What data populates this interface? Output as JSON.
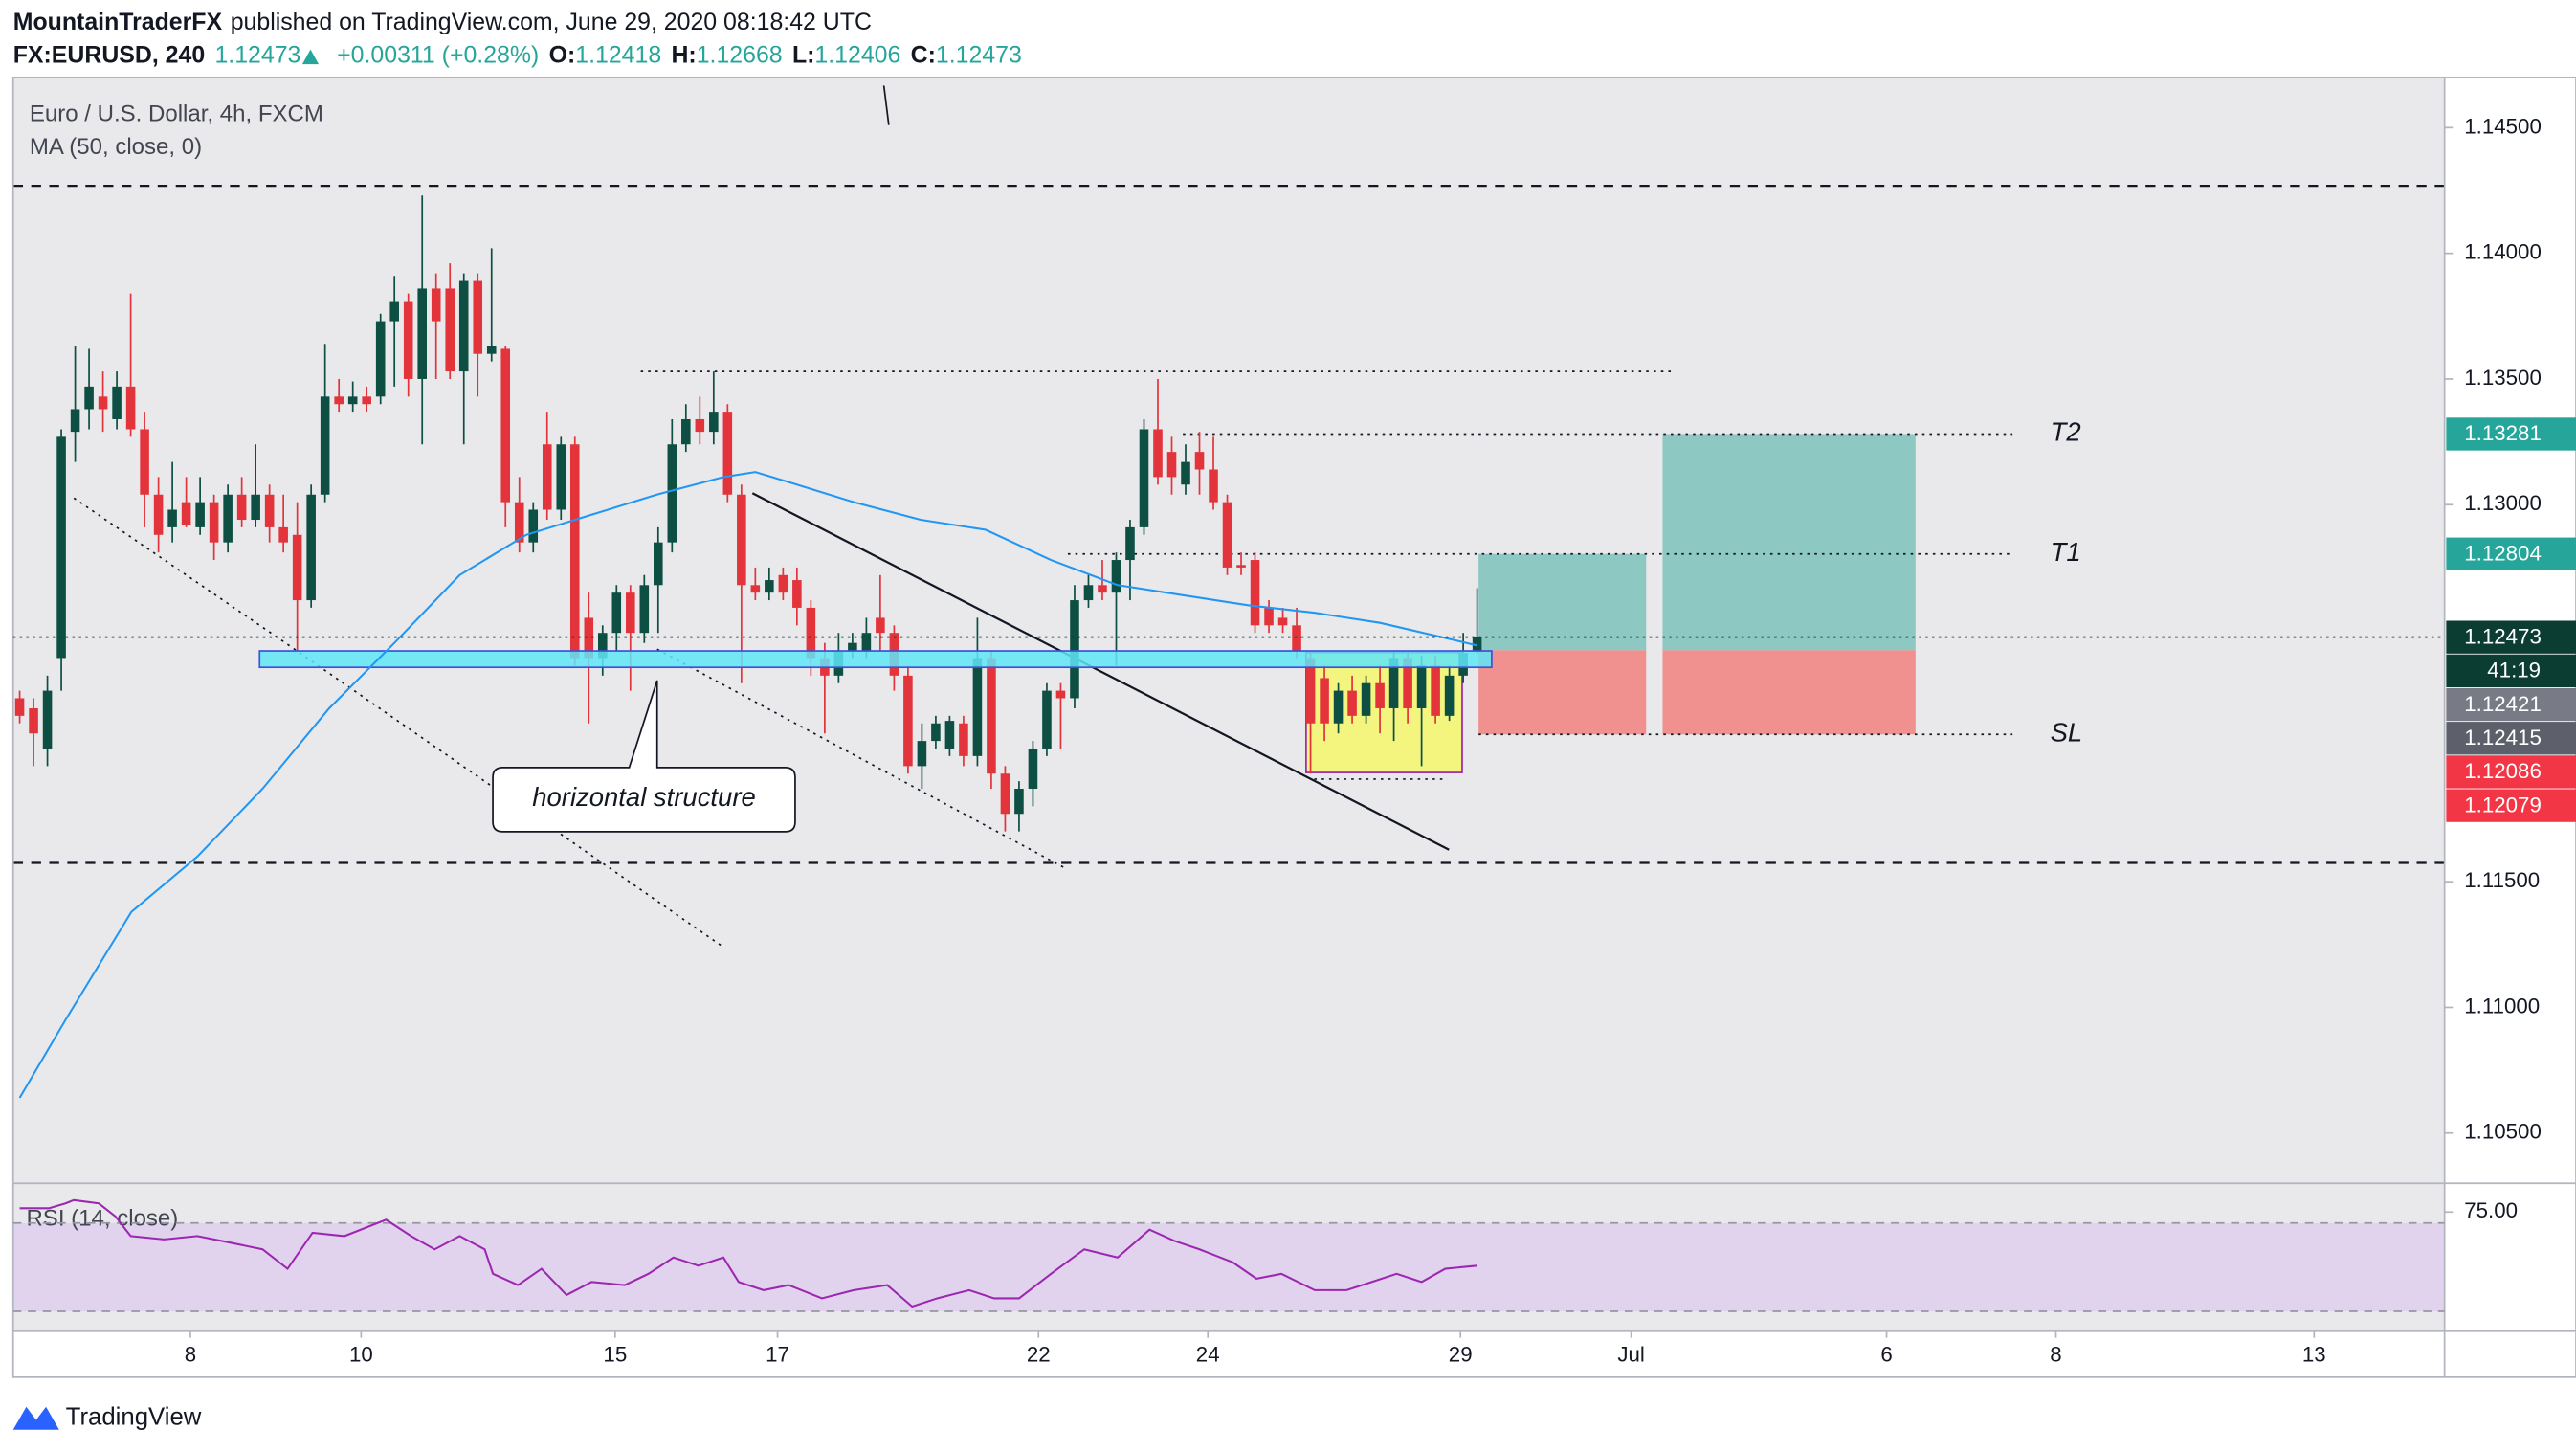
{
  "header": {
    "author": "MountainTraderFX",
    "published": "published on TradingView.com, June 29, 2020 08:18:42 UTC",
    "symbol": "FX:EURUSD, 240",
    "change": "+0.00311 (+0.28%)",
    "ohlc_labels": [
      "O:",
      "H:",
      "L:",
      "C:"
    ]
  },
  "chart_data": {
    "type": "candlestick",
    "title": "Euro / U.S. Dollar, 4h, FXCM",
    "up_color": "#0e4f43",
    "down_color": "#e3343c",
    "open": [
      1.1223,
      1.1219,
      1.1203,
      1.1239,
      1.1329,
      1.1338,
      1.1343,
      1.1334,
      1.1347,
      1.133,
      1.1304,
      1.1291,
      1.1301,
      1.1291,
      1.1301,
      1.1285,
      1.1304,
      1.1294,
      1.1304,
      1.1291,
      1.1288,
      1.1262,
      1.1304,
      1.1343,
      1.134,
      1.1343,
      1.1343,
      1.1373,
      1.1381,
      1.135,
      1.1386,
      1.1386,
      1.1353,
      1.1389,
      1.136,
      1.1362,
      1.1301,
      1.1285,
      1.1324,
      1.1298,
      1.1324,
      1.1255,
      1.1239,
      1.1249,
      1.1265,
      1.1249,
      1.1268,
      1.1285,
      1.1324,
      1.1334,
      1.1329,
      1.1337,
      1.1304,
      1.1268,
      1.1265,
      1.1272,
      1.127,
      1.1259,
      1.1239,
      1.1232,
      1.1242,
      1.1242,
      1.1255,
      1.1249,
      1.1232,
      1.1196,
      1.1206,
      1.1203,
      1.1213,
      1.12,
      1.1239,
      1.1193,
      1.1177,
      1.1187,
      1.1203,
      1.1226,
      1.1223,
      1.1262,
      1.1268,
      1.1265,
      1.1278,
      1.1291,
      1.133,
      1.1321,
      1.1308,
      1.1321,
      1.1314,
      1.1301,
      1.1276,
      1.1278,
      1.1259,
      1.1255,
      1.1252,
      1.1239,
      1.1231,
      1.1213,
      1.1226,
      1.1216,
      1.1229,
      1.1219,
      1.1239,
      1.1219,
      1.1236,
      1.1216,
      1.1232,
      1.12418
    ],
    "high": [
      1.1226,
      1.1223,
      1.1232,
      1.133,
      1.1363,
      1.1362,
      1.1353,
      1.1353,
      1.1384,
      1.1337,
      1.1311,
      1.1317,
      1.1311,
      1.1311,
      1.1304,
      1.1308,
      1.1311,
      1.1324,
      1.1308,
      1.1304,
      1.1301,
      1.1308,
      1.1364,
      1.135,
      1.1349,
      1.1347,
      1.1376,
      1.1391,
      1.1384,
      1.1423,
      1.1392,
      1.1396,
      1.1392,
      1.1392,
      1.1402,
      1.1363,
      1.1311,
      1.1301,
      1.1337,
      1.1327,
      1.1327,
      1.1265,
      1.1252,
      1.1268,
      1.1268,
      1.1272,
      1.1291,
      1.1334,
      1.134,
      1.1343,
      1.1353,
      1.134,
      1.1308,
      1.1275,
      1.1275,
      1.1275,
      1.1275,
      1.1262,
      1.1245,
      1.1249,
      1.1249,
      1.1255,
      1.1272,
      1.1252,
      1.1236,
      1.1213,
      1.1216,
      1.1216,
      1.1216,
      1.1255,
      1.1242,
      1.1196,
      1.119,
      1.1206,
      1.1229,
      1.1229,
      1.1268,
      1.1272,
      1.1278,
      1.1281,
      1.1294,
      1.1334,
      1.135,
      1.1327,
      1.1324,
      1.1329,
      1.1327,
      1.1304,
      1.1281,
      1.1281,
      1.1262,
      1.1259,
      1.1259,
      1.1242,
      1.1236,
      1.1229,
      1.1232,
      1.1232,
      1.1236,
      1.1242,
      1.1242,
      1.124,
      1.124,
      1.1236,
      1.1249,
      1.12668
    ],
    "low": [
      1.1213,
      1.1196,
      1.1196,
      1.1226,
      1.1317,
      1.133,
      1.1329,
      1.133,
      1.1327,
      1.1291,
      1.1281,
      1.1285,
      1.1291,
      1.1288,
      1.1278,
      1.1281,
      1.1291,
      1.1291,
      1.1285,
      1.1281,
      1.1242,
      1.1259,
      1.1301,
      1.1337,
      1.1337,
      1.1337,
      1.134,
      1.1347,
      1.1343,
      1.1324,
      1.135,
      1.135,
      1.1324,
      1.1343,
      1.1357,
      1.1291,
      1.1281,
      1.1281,
      1.1294,
      1.1294,
      1.1236,
      1.1213,
      1.1232,
      1.1242,
      1.1226,
      1.1245,
      1.1249,
      1.1281,
      1.1321,
      1.1324,
      1.1324,
      1.1301,
      1.1229,
      1.1262,
      1.1262,
      1.1262,
      1.1252,
      1.1232,
      1.1209,
      1.1229,
      1.1239,
      1.1239,
      1.1242,
      1.1226,
      1.1193,
      1.1187,
      1.1203,
      1.12,
      1.1196,
      1.1196,
      1.1187,
      1.117,
      1.117,
      1.118,
      1.12,
      1.1203,
      1.1219,
      1.1259,
      1.1262,
      1.1236,
      1.1262,
      1.1288,
      1.1308,
      1.1304,
      1.1304,
      1.1304,
      1.1298,
      1.1272,
      1.1272,
      1.1249,
      1.1249,
      1.1249,
      1.1239,
      1.1193,
      1.1206,
      1.1209,
      1.1213,
      1.1213,
      1.1209,
      1.1206,
      1.1213,
      1.1196,
      1.1213,
      1.1214,
      1.1229,
      1.12406
    ],
    "close": [
      1.1216,
      1.1209,
      1.1226,
      1.1327,
      1.1338,
      1.1347,
      1.1338,
      1.1347,
      1.133,
      1.1304,
      1.1288,
      1.1298,
      1.1292,
      1.1301,
      1.1285,
      1.1304,
      1.1294,
      1.1304,
      1.1291,
      1.1285,
      1.1262,
      1.1304,
      1.1343,
      1.134,
      1.1343,
      1.134,
      1.1373,
      1.1381,
      1.135,
      1.1386,
      1.1373,
      1.1353,
      1.1389,
      1.136,
      1.1363,
      1.1301,
      1.1285,
      1.1298,
      1.1298,
      1.1324,
      1.1239,
      1.1239,
      1.1249,
      1.1265,
      1.1249,
      1.1268,
      1.1285,
      1.1324,
      1.1334,
      1.1329,
      1.1337,
      1.1304,
      1.1268,
      1.1265,
      1.127,
      1.1265,
      1.1259,
      1.1239,
      1.1232,
      1.1242,
      1.1245,
      1.1249,
      1.1249,
      1.1232,
      1.1196,
      1.1206,
      1.1213,
      1.1214,
      1.12,
      1.1239,
      1.1193,
      1.1177,
      1.1187,
      1.1203,
      1.1226,
      1.1223,
      1.1262,
      1.1268,
      1.1265,
      1.1278,
      1.1291,
      1.133,
      1.1311,
      1.1311,
      1.1317,
      1.1314,
      1.1301,
      1.1275,
      1.1275,
      1.1252,
      1.1252,
      1.1252,
      1.1242,
      1.1213,
      1.1213,
      1.1226,
      1.1216,
      1.1229,
      1.1219,
      1.1239,
      1.1219,
      1.1236,
      1.1216,
      1.1232,
      1.1241,
      1.12473
    ],
    "ma": {
      "name": "MA (50, close, 0)",
      "color": "#2196f3",
      "x": [
        0,
        3.3,
        8.05,
        12.8,
        17.5,
        22.3,
        27.0,
        31.7,
        36.5,
        41.2,
        45.9,
        50.7,
        53.0,
        55.4,
        60.1,
        64.9,
        69.6,
        74.3,
        79.1,
        83.8,
        88.5,
        93.3,
        98.0,
        102.7,
        105
      ],
      "values": [
        1.1064,
        1.1095,
        1.1138,
        1.116,
        1.1187,
        1.1219,
        1.1245,
        1.1272,
        1.1288,
        1.1296,
        1.1304,
        1.1311,
        1.1313,
        1.1309,
        1.1301,
        1.1294,
        1.129,
        1.1278,
        1.1268,
        1.1264,
        1.126,
        1.1257,
        1.1253,
        1.1247,
        1.1244
      ]
    },
    "xlim": [
      -0.47,
      174.7
    ],
    "xticks": [
      {
        "value": 12.3,
        "label": "8"
      },
      {
        "value": 24.6,
        "label": "10"
      },
      {
        "value": 42.9,
        "label": "15"
      },
      {
        "value": 54.6,
        "label": "17"
      },
      {
        "value": 73.4,
        "label": "22"
      },
      {
        "value": 85.6,
        "label": "24"
      },
      {
        "value": 103.8,
        "label": "29"
      },
      {
        "value": 116.1,
        "label": "Jul"
      },
      {
        "value": 134.5,
        "label": "6"
      },
      {
        "value": 146.7,
        "label": "8"
      },
      {
        "value": 165.3,
        "label": "13"
      }
    ],
    "ylim": [
      1.103,
      1.147
    ],
    "yticks": [
      {
        "value": 1.145,
        "label": "1.14500"
      },
      {
        "value": 1.14,
        "label": "1.14000"
      },
      {
        "value": 1.135,
        "label": "1.13500"
      },
      {
        "value": 1.13,
        "label": "1.13000"
      },
      {
        "value": 1.115,
        "label": "1.11500"
      },
      {
        "value": 1.11,
        "label": "1.11000"
      },
      {
        "value": 1.105,
        "label": "1.10500"
      }
    ],
    "grid": false,
    "price_labels": [
      {
        "value": 1.13281,
        "color": "#26a69a"
      },
      {
        "value": 1.12804,
        "color": "#26a69a"
      },
      {
        "value": 1.12473,
        "color": "#0c3d33"
      },
      {
        "value": 1.12421,
        "color": "#787b86"
      },
      {
        "value": 1.12415,
        "color": "#5d606b"
      },
      {
        "value": 1.12086,
        "color": "#f23645"
      },
      {
        "value": 1.12079,
        "color": "#f23645"
      }
    ],
    "countdown": "41:19",
    "rsi": {
      "name": "RSI (14, close)",
      "color": "#9c27b0",
      "ylim": [
        21,
        88
      ],
      "band": [
        30,
        70
      ],
      "yticks": [
        {
          "value": 75,
          "label": "75.00"
        }
      ],
      "x": [
        0,
        2.1,
        3.3,
        3.9,
        5.7,
        6.9,
        8.0,
        10.4,
        12.8,
        15.2,
        17.5,
        19.3,
        21.1,
        23.4,
        26.4,
        28.2,
        29.9,
        31.7,
        33.5,
        34.1,
        35.9,
        37.6,
        39.4,
        41.2,
        43.6,
        45.3,
        47.1,
        48.9,
        50.7,
        51.8,
        53.6,
        55.4,
        57.8,
        60.1,
        62.5,
        64.3,
        66.1,
        68.4,
        70.2,
        72.0,
        74.3,
        76.7,
        79.1,
        81.4,
        83.2,
        85.0,
        87.4,
        89.1,
        90.9,
        93.3,
        95.6,
        97.4,
        99.2,
        101.0,
        102.7,
        105
      ],
      "values": [
        76.7,
        76.7,
        78.9,
        80.4,
        78.9,
        73.0,
        64.1,
        62.6,
        64.1,
        61.1,
        58.1,
        49.3,
        65.6,
        64.1,
        71.5,
        64.1,
        58.1,
        64.1,
        58.1,
        47.0,
        41.9,
        49.3,
        37.4,
        43.3,
        41.9,
        47.0,
        54.4,
        50.7,
        54.4,
        43.3,
        39.6,
        41.9,
        35.9,
        39.6,
        41.9,
        32.2,
        35.9,
        39.6,
        35.9,
        35.9,
        47.0,
        58.1,
        54.4,
        67.0,
        61.9,
        58.1,
        52.2,
        44.8,
        47.0,
        39.6,
        39.6,
        43.3,
        47.0,
        43.3,
        49.3,
        50.7
      ]
    },
    "annotations": {
      "targets": [
        "T2",
        "T1",
        "SL"
      ],
      "callout": "horizontal structure"
    }
  },
  "footer": {
    "brand": "TradingView"
  }
}
